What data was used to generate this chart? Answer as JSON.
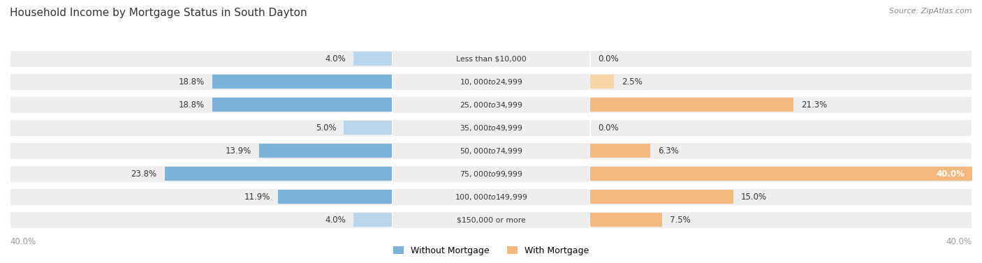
{
  "title": "Household Income by Mortgage Status in South Dayton",
  "source": "Source: ZipAtlas.com",
  "categories": [
    "Less than $10,000",
    "$10,000 to $24,999",
    "$25,000 to $34,999",
    "$35,000 to $49,999",
    "$50,000 to $74,999",
    "$75,000 to $99,999",
    "$100,000 to $149,999",
    "$150,000 or more"
  ],
  "without_mortgage": [
    4.0,
    18.8,
    18.8,
    5.0,
    13.9,
    23.8,
    11.9,
    4.0
  ],
  "with_mortgage": [
    0.0,
    2.5,
    21.3,
    0.0,
    6.3,
    40.0,
    15.0,
    7.5
  ],
  "color_without": "#7ab3d9",
  "color_with": "#f5b87e",
  "color_without_light": "#b8d5ec",
  "color_with_light": "#fad5a8",
  "axis_limit": 40.0,
  "row_bg_color": "#ebebeb",
  "row_alt_color": "#f5f5f5",
  "title_color": "#333333",
  "value_color": "#333333",
  "axis_label_color": "#999999",
  "figsize": [
    14.06,
    3.77
  ],
  "dpi": 100
}
